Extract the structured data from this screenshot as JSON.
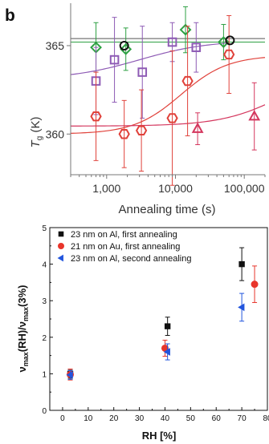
{
  "chart_data": [
    {
      "type": "scatter",
      "panel_label": "b",
      "xlabel": "Annealing time (s)",
      "ylabel_main": "T",
      "ylabel_sub": "g",
      "ylabel_unit": " (K)",
      "x_scale": "log",
      "xlim": [
        300,
        200000
      ],
      "ylim": [
        357.7,
        367.4
      ],
      "x_ticks": [
        1000,
        10000,
        100000
      ],
      "x_tick_labels": [
        "1,000",
        "10,000",
        "100,000"
      ],
      "y_ticks": [
        360,
        365
      ],
      "y_tick_labels": [
        "360",
        "365"
      ],
      "grid": false,
      "colors": {
        "green": "#2ea043",
        "purple": "#8e5bb5",
        "red": "#e0413a",
        "pink": "#d4365d",
        "black": "#111111"
      },
      "hlines": [
        {
          "y": 365.2,
          "color": "#2ea043"
        },
        {
          "y": 365.4,
          "color": "#555555"
        }
      ],
      "curves": [
        {
          "color": "#8e5bb5",
          "low": 363.1,
          "high": 365.3,
          "mid": 3000,
          "width": 1.1,
          "x_range": [
            300,
            60000
          ]
        },
        {
          "color": "#e0413a",
          "low": 360.0,
          "high": 364.45,
          "mid": 12000,
          "width": 0.75,
          "x_range": [
            300,
            200000
          ]
        },
        {
          "color": "#d4365d",
          "low": 360.45,
          "high": 364.0,
          "mid": 400000,
          "width": 1.0,
          "x_range": [
            300,
            200000
          ]
        }
      ],
      "series": [
        {
          "marker": "diamond",
          "color": "#2ea043",
          "points": [
            {
              "x": 700,
              "y": 364.9,
              "err": 1.4
            },
            {
              "x": 1900,
              "y": 364.8,
              "err": 1.2
            },
            {
              "x": 14000,
              "y": 365.9,
              "err": 1.3
            },
            {
              "x": 50000,
              "y": 365.2,
              "err": 1.0
            }
          ]
        },
        {
          "marker": "square",
          "color": "#8e5bb5",
          "points": [
            {
              "x": 700,
              "y": 363.0,
              "err": 1.9
            },
            {
              "x": 1300,
              "y": 364.2,
              "err": 2.4
            },
            {
              "x": 3300,
              "y": 363.5,
              "err": 2.6
            },
            {
              "x": 9000,
              "y": 365.2,
              "err": 1.1
            },
            {
              "x": 20000,
              "y": 364.9,
              "err": 1.4
            }
          ]
        },
        {
          "marker": "hexagon",
          "color": "#e0413a",
          "points": [
            {
              "x": 700,
              "y": 361.0,
              "err": 2.5
            },
            {
              "x": 1800,
              "y": 360.0,
              "err": 1.9
            },
            {
              "x": 3200,
              "y": 360.2,
              "err": 2.3
            },
            {
              "x": 9000,
              "y": 360.9,
              "err": 3.8
            },
            {
              "x": 15000,
              "y": 363.0,
              "err": 3.1
            },
            {
              "x": 60000,
              "y": 364.5,
              "err": 2.2
            }
          ]
        },
        {
          "marker": "triangle",
          "color": "#d4365d",
          "points": [
            {
              "x": 21000,
              "y": 360.3,
              "err": 0.9
            },
            {
              "x": 140000,
              "y": 361.0,
              "err": 1.9
            }
          ]
        },
        {
          "marker": "circle",
          "color": "#111111",
          "points": [
            {
              "x": 1800,
              "y": 365.0,
              "err": 0
            },
            {
              "x": 62000,
              "y": 365.3,
              "err": 0
            }
          ]
        }
      ]
    },
    {
      "type": "scatter",
      "xlabel": "RH [%]",
      "ylabel_v1": "ν",
      "ylabel_s1": "max",
      "ylabel_m": "(RH)/",
      "ylabel_v2": "ν",
      "ylabel_s2": "max",
      "ylabel_end": "(3%)",
      "xlim": [
        -5,
        80
      ],
      "ylim": [
        0,
        5
      ],
      "x_ticks": [
        0,
        5,
        10,
        15,
        20,
        25,
        30,
        35,
        40,
        45,
        50,
        55,
        60,
        65,
        70,
        75,
        80
      ],
      "x_tick_labels": [
        "0",
        "10",
        "20",
        "30",
        "40",
        "50",
        "60",
        "70",
        "80"
      ],
      "y_ticks": [
        0,
        1,
        2,
        3,
        4,
        5
      ],
      "y_tick_labels": [
        "0",
        "1",
        "2",
        "3",
        "4",
        "5"
      ],
      "grid": false,
      "legend_position": "top-left",
      "series": [
        {
          "name": "23 nm on Al, first annealing",
          "marker": "square",
          "color": "#111111",
          "points": [
            {
              "x": 3,
              "y": 1.0,
              "err": 0.12
            },
            {
              "x": 41,
              "y": 2.3,
              "err": 0.25
            },
            {
              "x": 70,
              "y": 4.0,
              "err": 0.45
            }
          ]
        },
        {
          "name": "21 nm on Au, first annealing",
          "marker": "circle",
          "color": "#e8352b",
          "points": [
            {
              "x": 3,
              "y": 0.98,
              "err": 0.15
            },
            {
              "x": 40,
              "y": 1.7,
              "err": 0.22
            },
            {
              "x": 75,
              "y": 3.45,
              "err": 0.5
            }
          ]
        },
        {
          "name": "23 nm on Al, second annealing",
          "marker": "triangle-left",
          "color": "#2255dd",
          "points": [
            {
              "x": 3,
              "y": 0.97,
              "err": 0.12
            },
            {
              "x": 41,
              "y": 1.6,
              "err": 0.22
            },
            {
              "x": 70,
              "y": 2.82,
              "err": 0.38
            }
          ]
        }
      ]
    }
  ]
}
